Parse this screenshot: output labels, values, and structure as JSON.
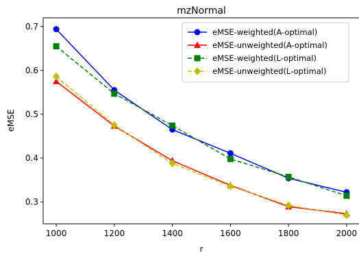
{
  "chart_data": {
    "type": "line",
    "title": "mzNormal",
    "xlabel": "r",
    "ylabel": "eMSE",
    "x": [
      1000,
      1200,
      1400,
      1600,
      1800,
      2000
    ],
    "xticks": [
      1000,
      1200,
      1400,
      1600,
      1800,
      2000
    ],
    "xtick_labels": [
      "1000",
      "1200",
      "1400",
      "1600",
      "1800",
      "2000"
    ],
    "yticks": [
      0.3,
      0.4,
      0.5,
      0.6,
      0.7
    ],
    "ytick_labels": [
      "0.3",
      "0.4",
      "0.5",
      "0.6",
      "0.7"
    ],
    "xlim": [
      955,
      2045
    ],
    "ylim": [
      0.25,
      0.72
    ],
    "grid": false,
    "legend_position": "top-right",
    "series": [
      {
        "name": "eMSE-weighted(A-optimal)",
        "values": [
          0.694,
          0.555,
          0.465,
          0.411,
          0.354,
          0.322
        ],
        "color": "#0000ff",
        "marker": "circle",
        "dash": "solid"
      },
      {
        "name": "eMSE-unweighted(A-optimal)",
        "values": [
          0.575,
          0.473,
          0.394,
          0.338,
          0.289,
          0.273
        ],
        "color": "#ff0000",
        "marker": "triangle",
        "dash": "solid"
      },
      {
        "name": "eMSE-weighted(L-optimal)",
        "values": [
          0.655,
          0.547,
          0.474,
          0.398,
          0.357,
          0.314
        ],
        "color": "#008000",
        "marker": "square",
        "dash": "dashed"
      },
      {
        "name": "eMSE-unweighted(L-optimal)",
        "values": [
          0.586,
          0.475,
          0.388,
          0.336,
          0.292,
          0.27
        ],
        "color": "#bfbf00",
        "marker": "diamond",
        "dash": "dashed"
      }
    ]
  }
}
